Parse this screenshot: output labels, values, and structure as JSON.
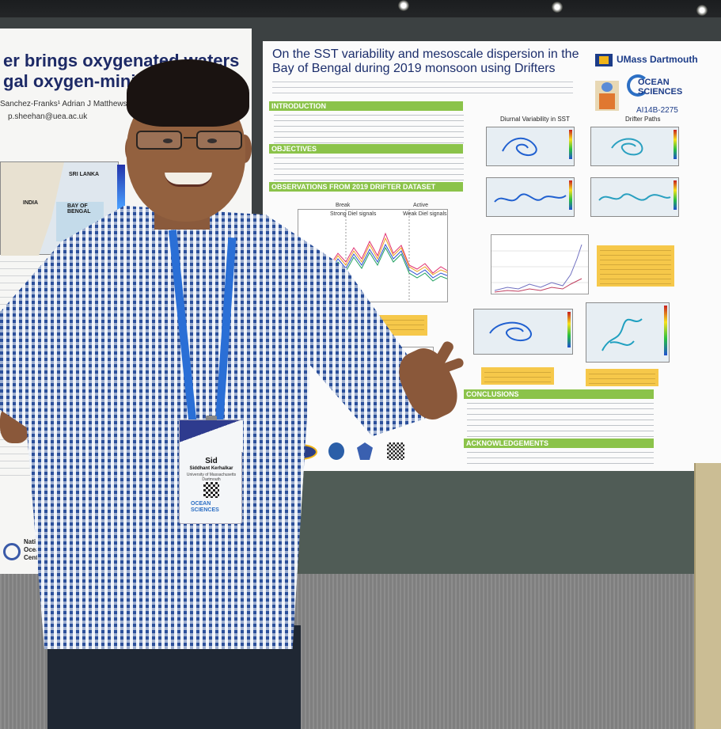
{
  "left_poster": {
    "title_line1": "er brings oxygenated waters",
    "title_line2": "gal oxygen-minimu",
    "authors": "Sanchez-Franks¹  Adrian J Matthews¹  Kare",
    "email": "p.sheehan@uea.ac.uk",
    "map_labels": [
      "INDIA",
      "BAY OF BENGAL",
      "SRI LANKA"
    ],
    "logo_line1": "National",
    "logo_line2": "Oceanog",
    "logo_line3": "Centre"
  },
  "main_poster": {
    "title": "On the SST variability and mesoscale dispersion in the Bay of Bengal during 2019 monsoon using Drifters",
    "umass": "UMass Dartmouth",
    "ocean_sciences": [
      "OCEAN",
      "SCIENCES"
    ],
    "abstract_id": "AI14B-2275",
    "sections": {
      "introduction": "INTRODUCTION",
      "objectives": "OBJECTIVES",
      "observations": "OBSERVATIONS FROM 2019 DRIFTER DATASET",
      "conclusions": "CONCLUSIONS",
      "acknowledgements": "ACKNOWLEDGEMENTS"
    },
    "chart_labels": {
      "diurnal": "Diurnal Variability in SST",
      "drifter_paths": "Drifter Paths",
      "break": "Break",
      "active": "Active",
      "strong_diel": "Strong Diel signals",
      "weak_diel": "Weak Diel signals"
    }
  },
  "badge": {
    "first_name": "Sid",
    "full_name": "Siddhant Kerhalkar",
    "affiliation": "University of Massachusetts Dartmouth",
    "logo": [
      "OCEAN",
      "SCIENCES"
    ]
  },
  "colors": {
    "section_bar": "#8bc34a",
    "title_blue": "#1c2e6c",
    "note_yellow": "#f6c84a",
    "lanyard": "#2a6fd6"
  }
}
